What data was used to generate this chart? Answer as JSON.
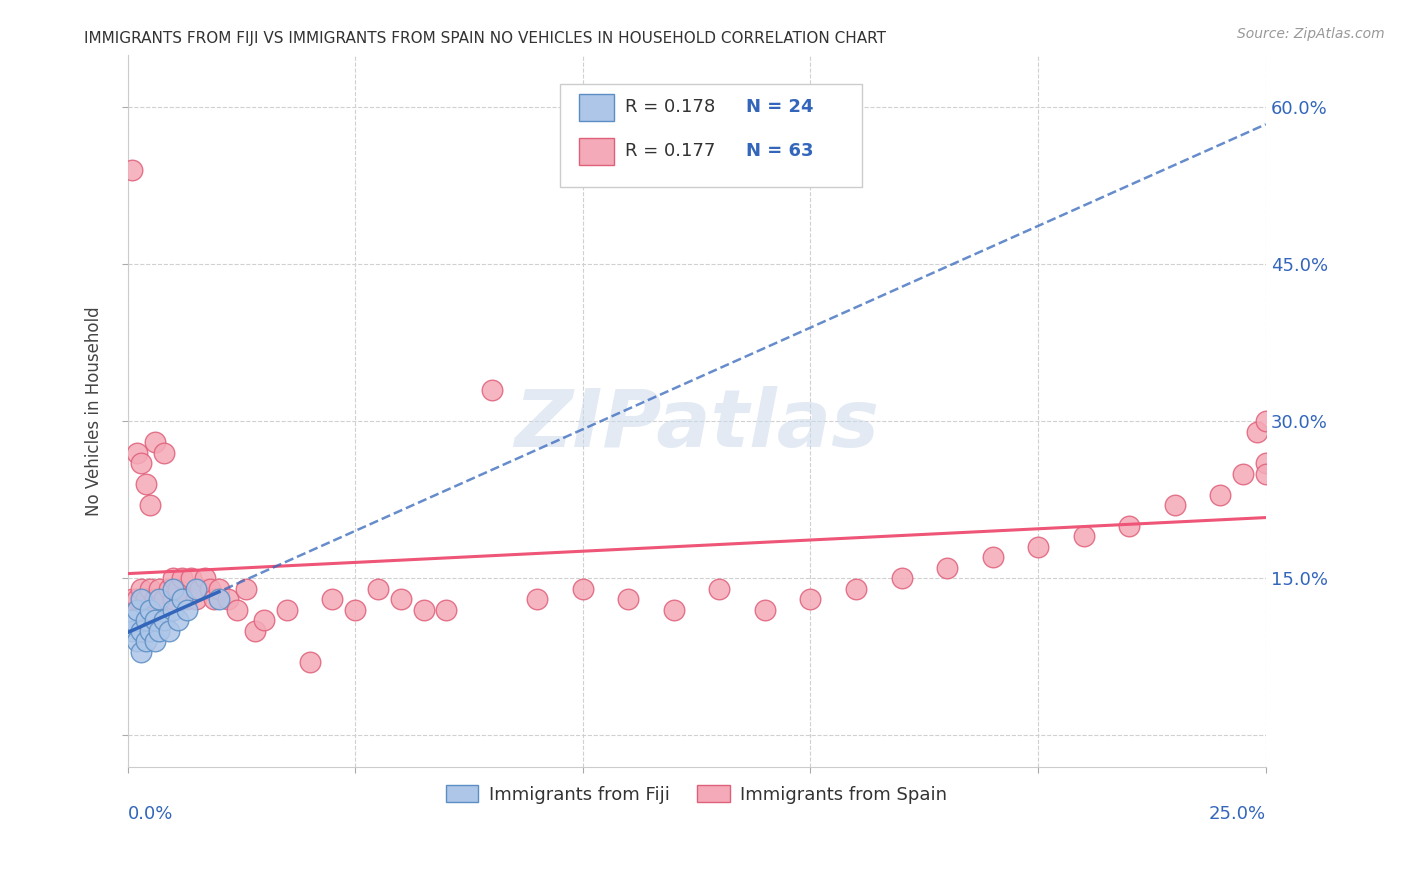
{
  "title": "IMMIGRANTS FROM FIJI VS IMMIGRANTS FROM SPAIN NO VEHICLES IN HOUSEHOLD CORRELATION CHART",
  "source": "Source: ZipAtlas.com",
  "ylabel": "No Vehicles in Household",
  "fiji_color": "#aec6e8",
  "fiji_edge_color": "#5b8ec4",
  "spain_color": "#f4aab8",
  "spain_edge_color": "#e0607a",
  "fiji_line_color": "#3366bb",
  "spain_line_color": "#ee5577",
  "watermark": "ZIPatlas",
  "xmin": 0.0,
  "xmax": 0.25,
  "ymin": -0.03,
  "ymax": 0.65,
  "yticks": [
    0.0,
    0.15,
    0.3,
    0.45,
    0.6
  ],
  "yticklabels": [
    "",
    "15.0%",
    "30.0%",
    "45.0%",
    "60.0%"
  ],
  "xtick_positions": [
    0.0,
    0.05,
    0.1,
    0.15,
    0.2,
    0.25
  ],
  "fiji_N": 24,
  "fiji_R": "0.178",
  "spain_N": 63,
  "spain_R": "0.177",
  "fiji_x": [
    0.001,
    0.001,
    0.002,
    0.002,
    0.003,
    0.003,
    0.003,
    0.004,
    0.004,
    0.005,
    0.005,
    0.006,
    0.006,
    0.007,
    0.007,
    0.008,
    0.009,
    0.01,
    0.01,
    0.011,
    0.012,
    0.013,
    0.015,
    0.02
  ],
  "fiji_y": [
    0.1,
    0.11,
    0.09,
    0.12,
    0.08,
    0.1,
    0.13,
    0.09,
    0.11,
    0.1,
    0.12,
    0.09,
    0.11,
    0.1,
    0.13,
    0.11,
    0.1,
    0.12,
    0.14,
    0.11,
    0.13,
    0.12,
    0.14,
    0.13
  ],
  "spain_x": [
    0.001,
    0.001,
    0.002,
    0.002,
    0.003,
    0.003,
    0.004,
    0.004,
    0.005,
    0.005,
    0.006,
    0.006,
    0.007,
    0.008,
    0.008,
    0.009,
    0.01,
    0.01,
    0.011,
    0.012,
    0.013,
    0.014,
    0.015,
    0.016,
    0.017,
    0.018,
    0.019,
    0.02,
    0.022,
    0.024,
    0.026,
    0.028,
    0.03,
    0.035,
    0.04,
    0.045,
    0.05,
    0.055,
    0.06,
    0.065,
    0.07,
    0.08,
    0.09,
    0.1,
    0.11,
    0.12,
    0.13,
    0.14,
    0.15,
    0.16,
    0.17,
    0.18,
    0.19,
    0.2,
    0.21,
    0.22,
    0.23,
    0.24,
    0.245,
    0.248,
    0.25,
    0.25,
    0.25
  ],
  "spain_y": [
    0.54,
    0.13,
    0.27,
    0.13,
    0.26,
    0.14,
    0.24,
    0.13,
    0.22,
    0.14,
    0.28,
    0.13,
    0.14,
    0.27,
    0.13,
    0.14,
    0.15,
    0.13,
    0.14,
    0.15,
    0.13,
    0.15,
    0.13,
    0.14,
    0.15,
    0.14,
    0.13,
    0.14,
    0.13,
    0.12,
    0.14,
    0.1,
    0.11,
    0.12,
    0.07,
    0.13,
    0.12,
    0.14,
    0.13,
    0.12,
    0.12,
    0.33,
    0.13,
    0.14,
    0.13,
    0.12,
    0.14,
    0.12,
    0.13,
    0.14,
    0.15,
    0.16,
    0.17,
    0.18,
    0.19,
    0.2,
    0.22,
    0.23,
    0.25,
    0.29,
    0.26,
    0.3,
    0.25
  ]
}
